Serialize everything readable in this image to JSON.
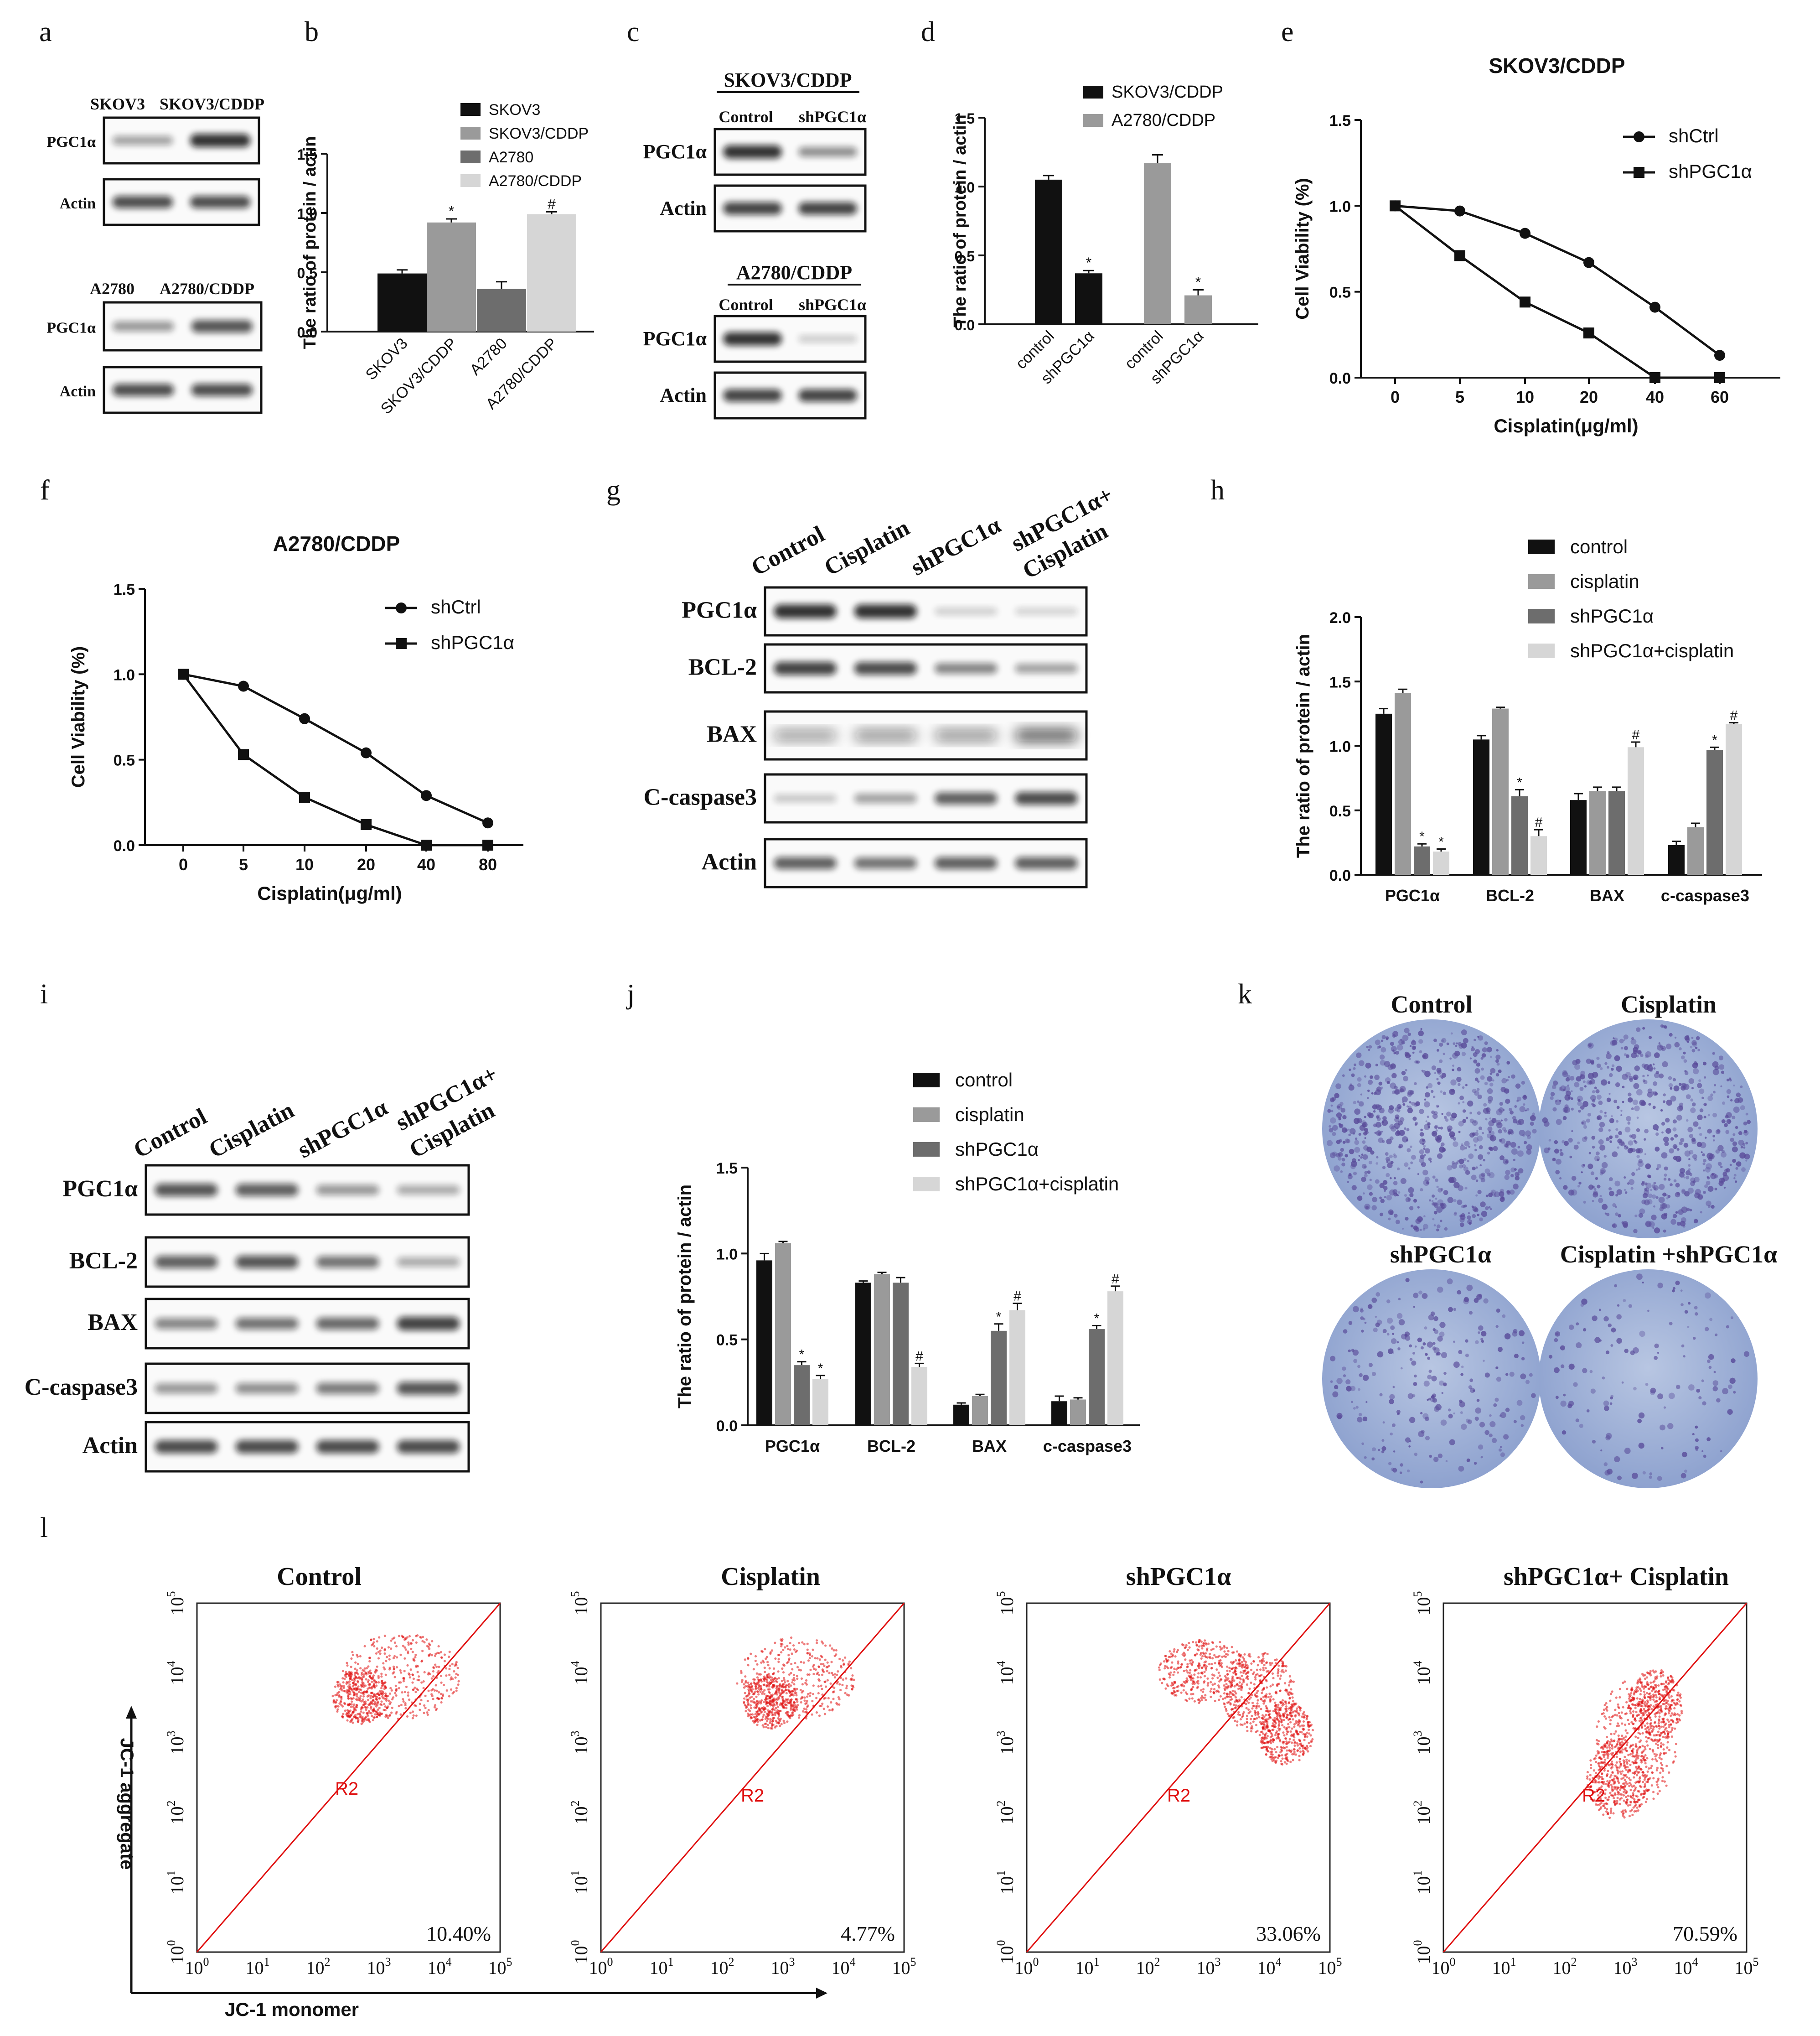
{
  "panel_letters": [
    "a",
    "b",
    "c",
    "d",
    "e",
    "f",
    "g",
    "h",
    "i",
    "j",
    "k",
    "l"
  ],
  "asterisk": "*",
  "hash": "#",
  "colors": {
    "black": "#111111",
    "gray1": "#9a9a9a",
    "gray2": "#6d6d6d",
    "gray3": "#d6d6d6",
    "red": "#e01010",
    "plate": "#aab8d8"
  },
  "panel_a": {
    "top": {
      "lanes": [
        "SKOV3",
        "SKOV3/CDDP"
      ],
      "rows": [
        "PGC1α",
        "Actin"
      ]
    },
    "bottom": {
      "lanes": [
        "A2780",
        "A2780/CDDP"
      ],
      "rows": [
        "PGC1α",
        "Actin"
      ]
    }
  },
  "panel_c": {
    "top": {
      "title": "SKOV3/CDDP",
      "lanes": [
        "Control",
        "shPGC1α"
      ],
      "rows": [
        "PGC1α",
        "Actin"
      ]
    },
    "bottom": {
      "title": "A2780/CDDP",
      "lanes": [
        "Control",
        "shPGC1α"
      ],
      "rows": [
        "PGC1α",
        "Actin"
      ]
    }
  },
  "panel_g": {
    "lanes": [
      "Control",
      "Cisplatin",
      "shPGC1α",
      "shPGC1α+",
      "Cisplatin"
    ],
    "rows": [
      "PGC1α",
      "BCL-2",
      "BAX",
      "C-caspase3",
      "Actin"
    ]
  },
  "panel_i": {
    "lanes": [
      "Control",
      "Cisplatin",
      "shPGC1α",
      "shPGC1α+",
      "Cisplatin"
    ],
    "rows": [
      "PGC1α",
      "BCL-2",
      "BAX",
      "C-caspase3",
      "Actin"
    ]
  },
  "panel_k": {
    "labels": [
      "Control",
      "Cisplatin",
      "shPGC1α",
      "Cisplatin +shPGC1α"
    ]
  },
  "panel_l": {
    "y_label": "JC-1 aggregate",
    "x_label": "JC-1 monomer",
    "gate": "R2",
    "tick_base": "10",
    "tick_exps": [
      "0",
      "1",
      "2",
      "3",
      "4",
      "5"
    ],
    "plots": [
      {
        "title": "Control",
        "percent": "10.40%"
      },
      {
        "title": "Cisplatin",
        "percent": "4.77%"
      },
      {
        "title": "shPGC1α",
        "percent": "33.06%"
      },
      {
        "title": "shPGC1α+ Cisplatin",
        "percent": "70.59%"
      }
    ]
  },
  "chart_data": [
    {
      "id": "b",
      "type": "bar",
      "categories": [
        "SKOV3",
        "SKOV3/CDDP",
        "A2780",
        "A2780/CDDP"
      ],
      "values": [
        0.49,
        0.92,
        0.36,
        0.99
      ],
      "errors": [
        0.03,
        0.03,
        0.06,
        0.02
      ],
      "marks": [
        "",
        "*",
        "",
        "#"
      ],
      "legend": [
        "SKOV3",
        "SKOV3/CDDP",
        "A2780",
        "A2780/CDDP"
      ],
      "ylabel": "The ratio of protein / actin",
      "yticks": [
        "0.0",
        "0.5",
        "1.0",
        "1.5"
      ],
      "ylim": [
        0,
        1.5
      ]
    },
    {
      "id": "d",
      "type": "bar",
      "categories": [
        "control",
        "shPGC1α",
        "control",
        "shPGC1α"
      ],
      "values": [
        1.05,
        0.37,
        1.17,
        0.21
      ],
      "errors": [
        0.03,
        0.02,
        0.06,
        0.04
      ],
      "marks": [
        "",
        "*",
        "",
        "*"
      ],
      "legend": [
        "SKOV3/CDDP",
        "A2780/CDDP"
      ],
      "ylabel": "The ratio of protein / actin",
      "yticks": [
        "0.0",
        "0.5",
        "1.0",
        "1.5"
      ],
      "ylim": [
        0,
        1.5
      ]
    },
    {
      "id": "e",
      "type": "line",
      "title": "SKOV3/CDDP",
      "categories": [
        "0",
        "5",
        "10",
        "20",
        "40",
        "60"
      ],
      "series": [
        {
          "name": "shCtrl",
          "values": [
            1.0,
            0.97,
            0.84,
            0.67,
            0.41,
            0.13
          ]
        },
        {
          "name": "shPGC1α",
          "values": [
            1.0,
            0.71,
            0.44,
            0.26,
            0.0,
            0.0
          ]
        }
      ],
      "xlabel": "Cisplatin(μg/ml)",
      "ylabel": "Cell Viability (%)",
      "yticks": [
        "0.0",
        "0.5",
        "1.0",
        "1.5"
      ],
      "ylim": [
        0,
        1.5
      ]
    },
    {
      "id": "f",
      "type": "line",
      "title": "A2780/CDDP",
      "categories": [
        "0",
        "5",
        "10",
        "20",
        "40",
        "80"
      ],
      "series": [
        {
          "name": "shCtrl",
          "values": [
            1.0,
            0.93,
            0.74,
            0.54,
            0.29,
            0.13
          ]
        },
        {
          "name": "shPGC1α",
          "values": [
            1.0,
            0.53,
            0.28,
            0.12,
            0.0,
            0.0
          ]
        }
      ],
      "xlabel": "Cisplatin(μg/ml)",
      "ylabel": "Cell Viability (%)",
      "yticks": [
        "0.0",
        "0.5",
        "1.0",
        "1.5"
      ],
      "ylim": [
        0,
        1.5
      ]
    },
    {
      "id": "h",
      "type": "bar",
      "categories": [
        "PGC1α",
        "BCL-2",
        "BAX",
        "c-caspase3"
      ],
      "series": [
        {
          "name": "control",
          "values": [
            1.25,
            1.05,
            0.58,
            0.23
          ],
          "errors": [
            0.04,
            0.03,
            0.05,
            0.03
          ],
          "marks": [
            "",
            "",
            "",
            ""
          ]
        },
        {
          "name": "cisplatin",
          "values": [
            1.41,
            1.29,
            0.65,
            0.37
          ],
          "errors": [
            0.03,
            0.01,
            0.03,
            0.03
          ],
          "marks": [
            "",
            "",
            "",
            ""
          ]
        },
        {
          "name": "shPGC1α",
          "values": [
            0.22,
            0.61,
            0.65,
            0.97
          ],
          "errors": [
            0.02,
            0.05,
            0.03,
            0.02
          ],
          "marks": [
            "*",
            "*",
            "",
            "*"
          ]
        },
        {
          "name": "shPGC1α+cisplatin",
          "values": [
            0.18,
            0.3,
            0.99,
            1.17
          ],
          "errors": [
            0.02,
            0.05,
            0.04,
            0.01
          ],
          "marks": [
            "*",
            "#",
            "#",
            "#"
          ]
        }
      ],
      "ylabel": "The ratio of protein / actin",
      "yticks": [
        "0.0",
        "0.5",
        "1.0",
        "1.5",
        "2.0"
      ],
      "ylim": [
        0,
        2.0
      ]
    },
    {
      "id": "j",
      "type": "bar",
      "categories": [
        "PGC1α",
        "BCL-2",
        "BAX",
        "c-caspase3"
      ],
      "series": [
        {
          "name": "control",
          "values": [
            0.96,
            0.83,
            0.12,
            0.14
          ],
          "errors": [
            0.04,
            0.01,
            0.01,
            0.03
          ],
          "marks": [
            "",
            "",
            "",
            ""
          ]
        },
        {
          "name": "cisplatin",
          "values": [
            1.06,
            0.88,
            0.17,
            0.15
          ],
          "errors": [
            0.01,
            0.01,
            0.01,
            0.01
          ],
          "marks": [
            "",
            "",
            "",
            ""
          ]
        },
        {
          "name": "shPGC1α",
          "values": [
            0.35,
            0.83,
            0.55,
            0.56
          ],
          "errors": [
            0.02,
            0.03,
            0.04,
            0.02
          ],
          "marks": [
            "*",
            "",
            "*",
            "*"
          ]
        },
        {
          "name": "shPGC1α+cisplatin",
          "values": [
            0.27,
            0.34,
            0.67,
            0.78
          ],
          "errors": [
            0.02,
            0.02,
            0.04,
            0.03
          ],
          "marks": [
            "*",
            "#",
            "#",
            "#"
          ]
        }
      ],
      "ylabel": "The ratio of protein / actin",
      "yticks": [
        "0.0",
        "0.5",
        "1.0",
        "1.5"
      ],
      "ylim": [
        0,
        1.5
      ]
    }
  ]
}
